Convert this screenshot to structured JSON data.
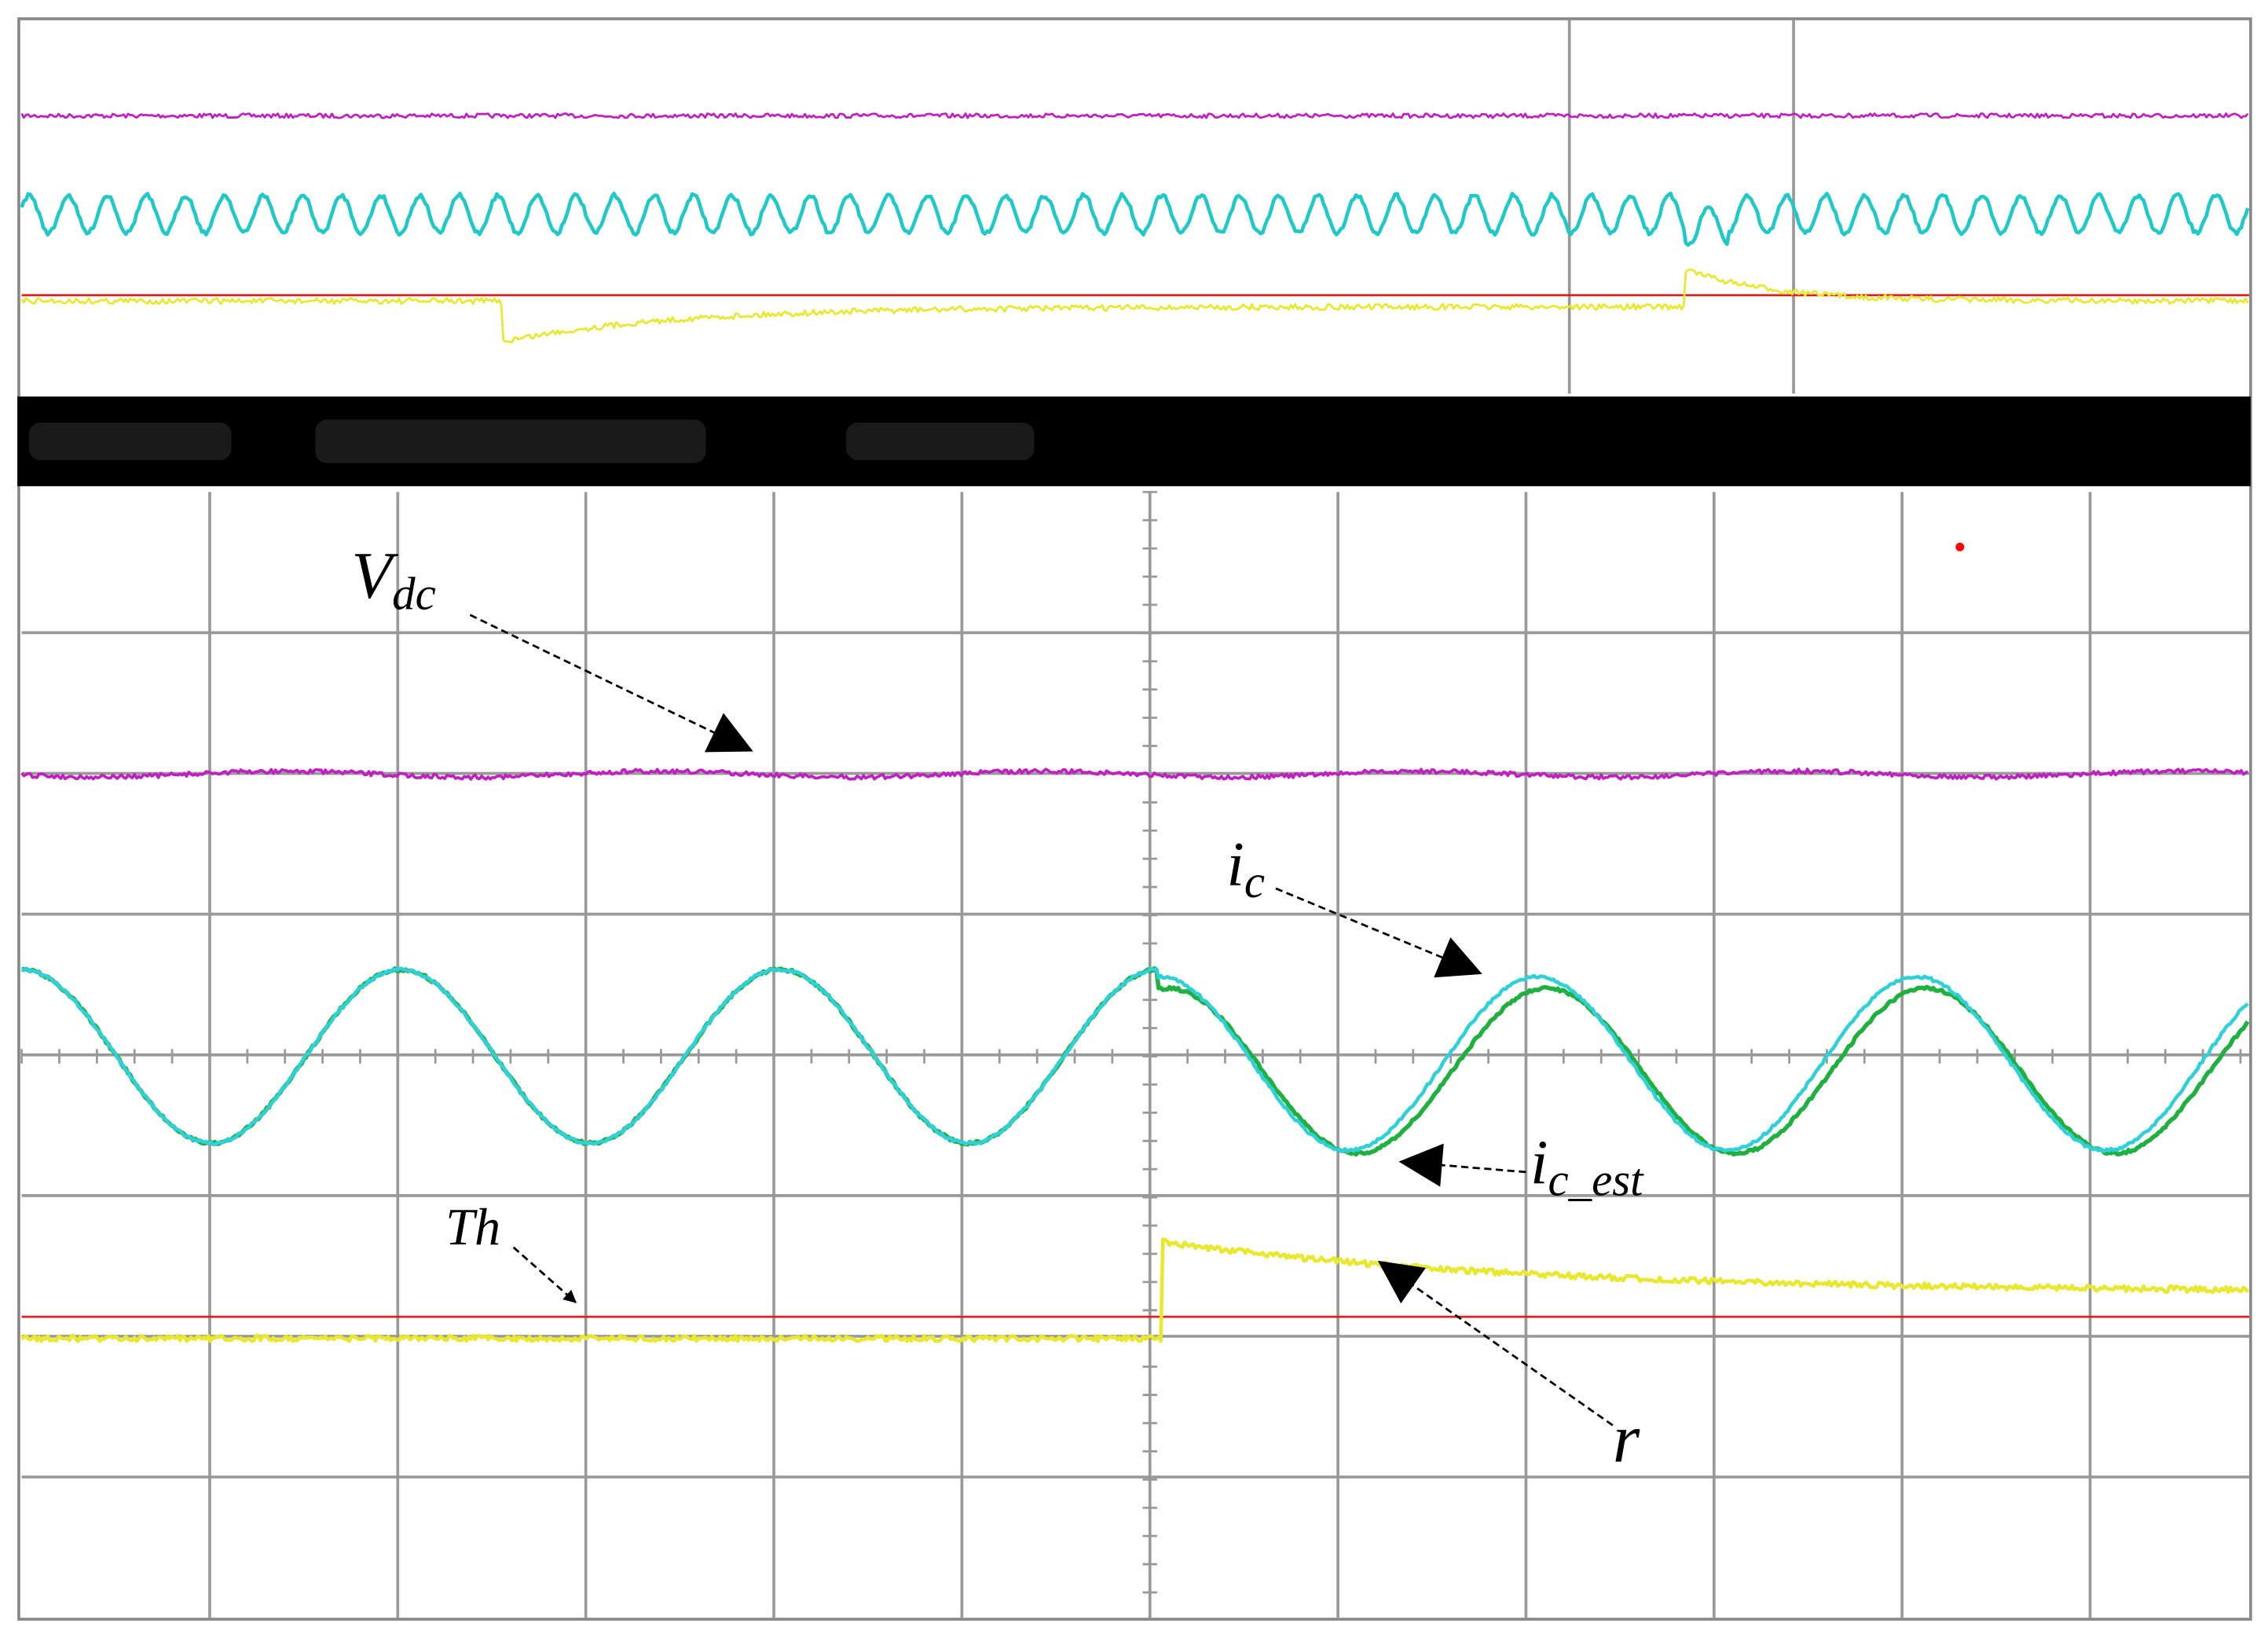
{
  "labels": {
    "vdc": {
      "main": "V",
      "sub": "dc"
    },
    "ic": {
      "main": "i",
      "sub": "c"
    },
    "ic_est": {
      "main": "i",
      "sub": "c_est"
    },
    "th": "Th",
    "r": "r"
  }
}
